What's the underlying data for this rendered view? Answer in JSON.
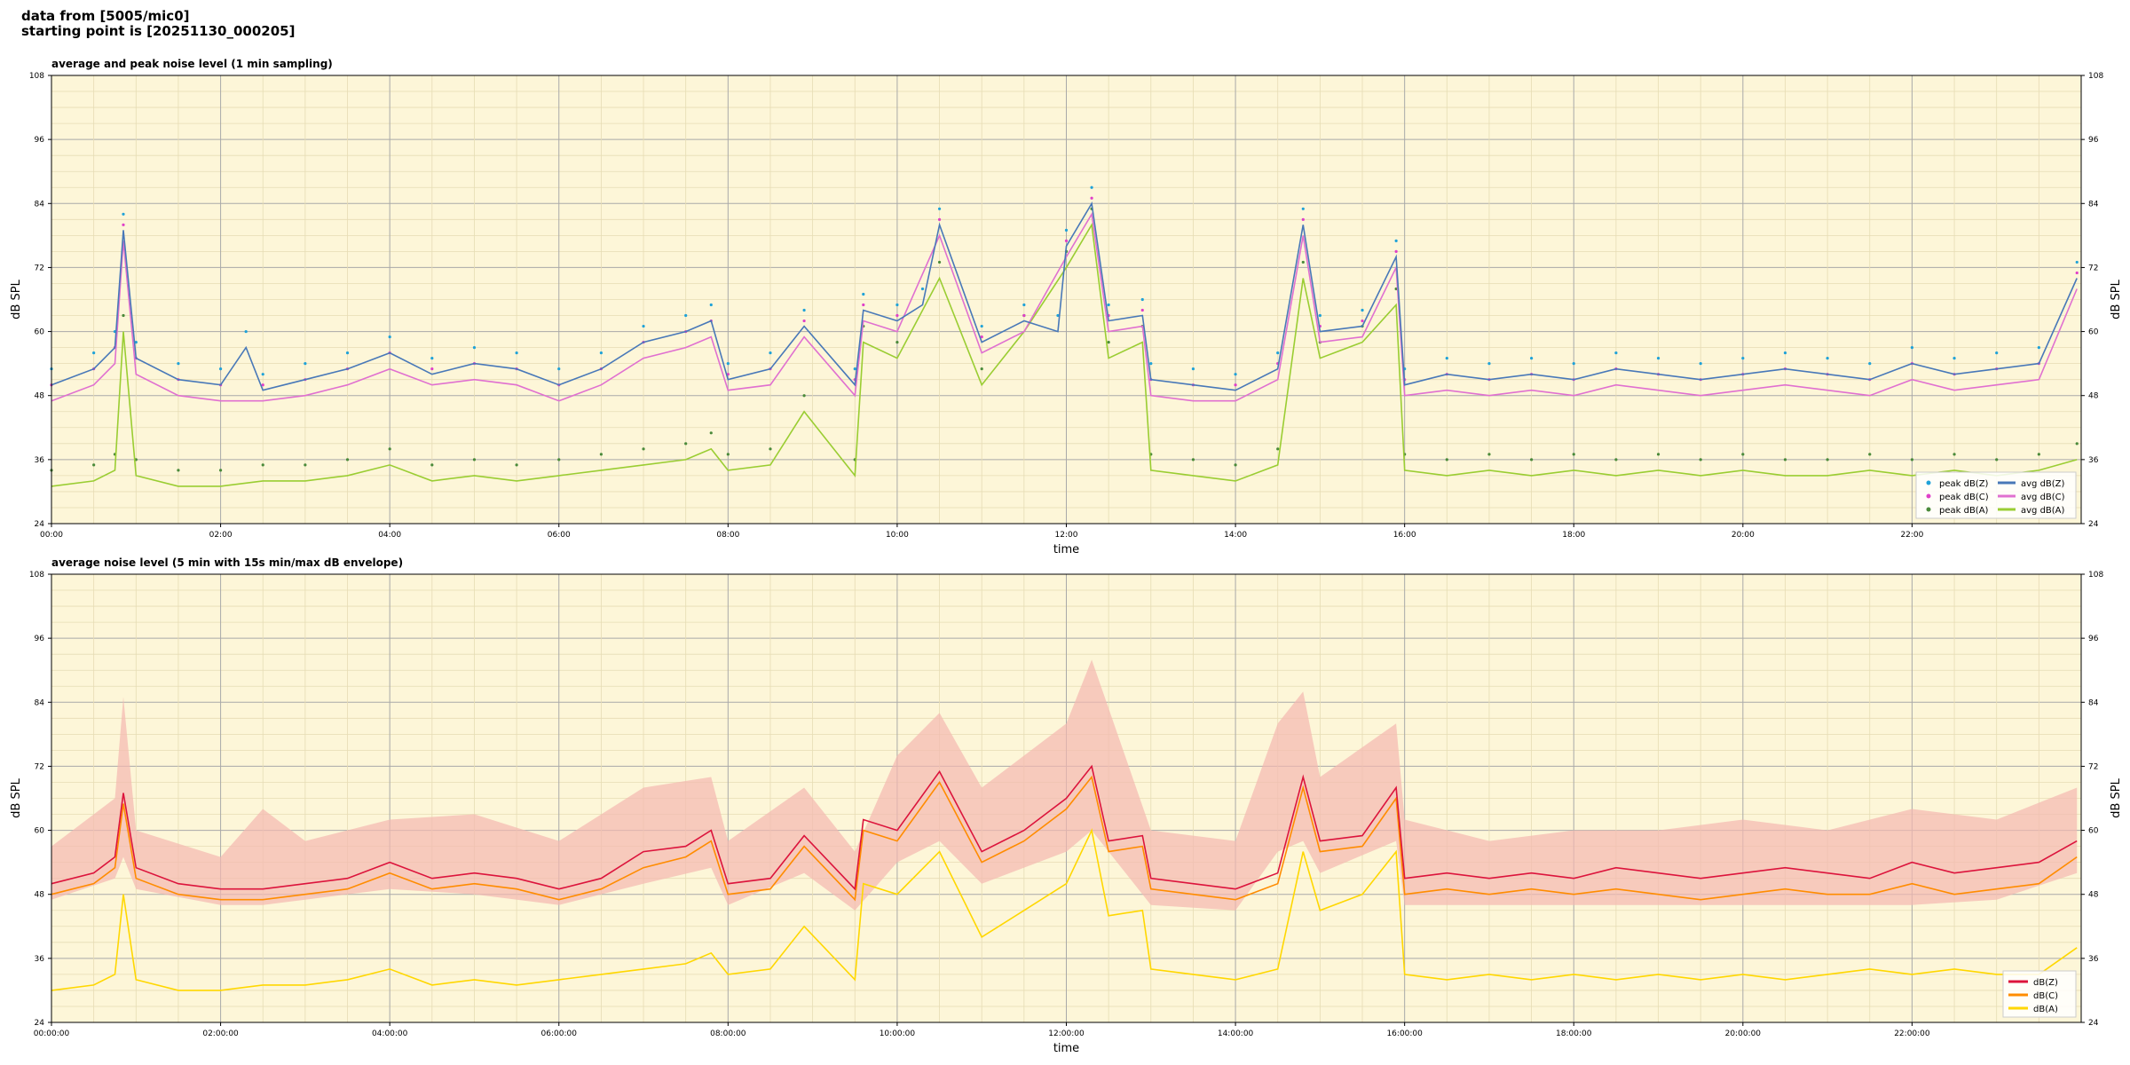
{
  "header": {
    "line1": "data from [5005/mic0]",
    "line2": "starting point is [20251130_000205]"
  },
  "colors": {
    "background": "#fdf6d8",
    "grid_major": "#a9a9a9",
    "grid_minor": "#e6dcb4",
    "peak_z": "#1fa2d8",
    "peak_c": "#e040c8",
    "peak_a": "#4a8a3a",
    "avg_z": "#4878b8",
    "avg_c": "#e070d0",
    "avg_a": "#9acd32",
    "line_z": "#dc143c",
    "line_c": "#ff8c00",
    "line_a": "#ffd700",
    "envelope": "#f4b8b0"
  },
  "chart_data": [
    {
      "type": "line",
      "title": "average and peak noise level (1 min sampling)",
      "xlabel": "time",
      "ylabel": "dB SPL",
      "xlim": [
        0,
        24
      ],
      "ylim": [
        24,
        108
      ],
      "yticks": [
        "24",
        "36",
        "48",
        "60",
        "72",
        "84",
        "96",
        "108"
      ],
      "xticks": [
        "00:00",
        "02:00",
        "04:00",
        "06:00",
        "08:00",
        "10:00",
        "12:00",
        "14:00",
        "16:00",
        "18:00",
        "20:00",
        "22:00"
      ],
      "grid": true,
      "legend": "bottom-right",
      "legend_entries": [
        "peak dB(Z)",
        "peak dB(C)",
        "peak dB(A)",
        "avg dB(Z)",
        "avg dB(C)",
        "avg dB(A)"
      ],
      "series": [
        {
          "name": "avg dB(Z)",
          "x": [
            0,
            0.5,
            0.75,
            0.85,
            1,
            1.5,
            2,
            2.3,
            2.5,
            3,
            3.5,
            4,
            4.5,
            5,
            5.5,
            6,
            6.5,
            7,
            7.5,
            7.8,
            8,
            8.5,
            8.9,
            9.5,
            9.6,
            10,
            10.3,
            10.5,
            11,
            11.5,
            11.9,
            12,
            12.3,
            12.5,
            12.9,
            13,
            13.5,
            14,
            14.5,
            14.8,
            15,
            15.5,
            15.9,
            16,
            16.5,
            17,
            17.5,
            18,
            18.5,
            19,
            19.5,
            20,
            20.5,
            21,
            21.5,
            22,
            22.5,
            23,
            23.5,
            23.95
          ],
          "values": [
            50,
            53,
            57,
            79,
            55,
            51,
            50,
            57,
            49,
            51,
            53,
            56,
            52,
            54,
            53,
            50,
            53,
            58,
            60,
            62,
            51,
            53,
            61,
            50,
            64,
            62,
            65,
            80,
            58,
            62,
            60,
            76,
            84,
            62,
            63,
            51,
            50,
            49,
            53,
            80,
            60,
            61,
            74,
            50,
            52,
            51,
            52,
            51,
            53,
            52,
            51,
            52,
            53,
            52,
            51,
            54,
            52,
            53,
            54,
            70
          ]
        },
        {
          "name": "avg dB(C)",
          "x": [
            0,
            0.5,
            0.75,
            0.85,
            1,
            1.5,
            2,
            2.5,
            3,
            3.5,
            4,
            4.5,
            5,
            5.5,
            6,
            6.5,
            7,
            7.5,
            7.8,
            8,
            8.5,
            8.9,
            9.5,
            9.6,
            10,
            10.5,
            11,
            11.5,
            12,
            12.3,
            12.5,
            12.9,
            13,
            13.5,
            14,
            14.5,
            14.8,
            15,
            15.5,
            15.9,
            16,
            16.5,
            17,
            17.5,
            18,
            18.5,
            19,
            19.5,
            20,
            20.5,
            21,
            21.5,
            22,
            22.5,
            23,
            23.5,
            23.95
          ],
          "values": [
            47,
            50,
            54,
            77,
            52,
            48,
            47,
            47,
            48,
            50,
            53,
            50,
            51,
            50,
            47,
            50,
            55,
            57,
            59,
            49,
            50,
            59,
            48,
            62,
            60,
            78,
            56,
            60,
            74,
            82,
            60,
            61,
            48,
            47,
            47,
            51,
            78,
            58,
            59,
            72,
            48,
            49,
            48,
            49,
            48,
            50,
            49,
            48,
            49,
            50,
            49,
            48,
            51,
            49,
            50,
            51,
            68
          ]
        },
        {
          "name": "avg dB(A)",
          "x": [
            0,
            0.5,
            0.75,
            0.85,
            1,
            1.5,
            2,
            2.5,
            3,
            3.5,
            4,
            4.5,
            5,
            5.5,
            6,
            6.5,
            7,
            7.5,
            7.8,
            8,
            8.5,
            8.9,
            9.5,
            9.6,
            10,
            10.5,
            11,
            11.5,
            12,
            12.3,
            12.5,
            12.9,
            13,
            13.5,
            14,
            14.5,
            14.8,
            15,
            15.5,
            15.9,
            16,
            16.5,
            17,
            17.5,
            18,
            18.5,
            19,
            19.5,
            20,
            20.5,
            21,
            21.5,
            22,
            22.5,
            23,
            23.5,
            23.95
          ],
          "values": [
            31,
            32,
            34,
            60,
            33,
            31,
            31,
            32,
            32,
            33,
            35,
            32,
            33,
            32,
            33,
            34,
            35,
            36,
            38,
            34,
            35,
            45,
            33,
            58,
            55,
            70,
            50,
            60,
            72,
            80,
            55,
            58,
            34,
            33,
            32,
            35,
            70,
            55,
            58,
            65,
            34,
            33,
            34,
            33,
            34,
            33,
            34,
            33,
            34,
            33,
            33,
            34,
            33,
            34,
            33,
            34,
            36
          ]
        }
      ]
    },
    {
      "type": "line",
      "title": "average noise level (5 min with 15s min/max dB envelope)",
      "xlabel": "time",
      "ylabel": "dB SPL",
      "xlim": [
        0,
        24
      ],
      "ylim": [
        24,
        108
      ],
      "yticks": [
        "24",
        "36",
        "48",
        "60",
        "72",
        "84",
        "96",
        "108"
      ],
      "xticks": [
        "00:00:00",
        "02:00:00",
        "04:00:00",
        "06:00:00",
        "08:00:00",
        "10:00:00",
        "12:00:00",
        "14:00:00",
        "16:00:00",
        "18:00:00",
        "20:00:00",
        "22:00:00"
      ],
      "grid": true,
      "legend": "bottom-right",
      "legend_entries": [
        "dB(Z)",
        "dB(C)",
        "dB(A)"
      ],
      "series": [
        {
          "name": "dB(Z)",
          "x": [
            0,
            0.5,
            0.75,
            0.85,
            1,
            1.5,
            2,
            2.5,
            3,
            3.5,
            4,
            4.5,
            5,
            5.5,
            6,
            6.5,
            7,
            7.5,
            7.8,
            8,
            8.5,
            8.9,
            9.5,
            9.6,
            10,
            10.5,
            11,
            11.5,
            12,
            12.3,
            12.5,
            12.9,
            13,
            13.5,
            14,
            14.5,
            14.8,
            15,
            15.5,
            15.9,
            16,
            16.5,
            17,
            17.5,
            18,
            18.5,
            19,
            19.5,
            20,
            20.5,
            21,
            21.5,
            22,
            22.5,
            23,
            23.5,
            23.95
          ],
          "values": [
            50,
            52,
            55,
            67,
            53,
            50,
            49,
            49,
            50,
            51,
            54,
            51,
            52,
            51,
            49,
            51,
            56,
            57,
            60,
            50,
            51,
            59,
            49,
            62,
            60,
            71,
            56,
            60,
            66,
            72,
            58,
            59,
            51,
            50,
            49,
            52,
            70,
            58,
            59,
            68,
            51,
            52,
            51,
            52,
            51,
            53,
            52,
            51,
            52,
            53,
            52,
            51,
            54,
            52,
            53,
            54,
            58
          ]
        },
        {
          "name": "dB(C)",
          "x": [
            0,
            0.5,
            0.75,
            0.85,
            1,
            1.5,
            2,
            2.5,
            3,
            3.5,
            4,
            4.5,
            5,
            5.5,
            6,
            6.5,
            7,
            7.5,
            7.8,
            8,
            8.5,
            8.9,
            9.5,
            9.6,
            10,
            10.5,
            11,
            11.5,
            12,
            12.3,
            12.5,
            12.9,
            13,
            13.5,
            14,
            14.5,
            14.8,
            15,
            15.5,
            15.9,
            16,
            16.5,
            17,
            17.5,
            18,
            18.5,
            19,
            19.5,
            20,
            20.5,
            21,
            21.5,
            22,
            22.5,
            23,
            23.5,
            23.95
          ],
          "values": [
            48,
            50,
            53,
            65,
            51,
            48,
            47,
            47,
            48,
            49,
            52,
            49,
            50,
            49,
            47,
            49,
            53,
            55,
            58,
            48,
            49,
            57,
            47,
            60,
            58,
            69,
            54,
            58,
            64,
            70,
            56,
            57,
            49,
            48,
            47,
            50,
            68,
            56,
            57,
            66,
            48,
            49,
            48,
            49,
            48,
            49,
            48,
            47,
            48,
            49,
            48,
            48,
            50,
            48,
            49,
            50,
            55
          ]
        },
        {
          "name": "dB(A)",
          "x": [
            0,
            0.5,
            0.75,
            0.85,
            1,
            1.5,
            2,
            2.5,
            3,
            3.5,
            4,
            4.5,
            5,
            5.5,
            6,
            6.5,
            7,
            7.5,
            7.8,
            8,
            8.5,
            8.9,
            9.5,
            9.6,
            10,
            10.5,
            11,
            11.5,
            12,
            12.3,
            12.5,
            12.9,
            13,
            13.5,
            14,
            14.5,
            14.8,
            15,
            15.5,
            15.9,
            16,
            16.5,
            17,
            17.5,
            18,
            18.5,
            19,
            19.5,
            20,
            20.5,
            21,
            21.5,
            22,
            22.5,
            23,
            23.5,
            23.95
          ],
          "values": [
            30,
            31,
            33,
            48,
            32,
            30,
            30,
            31,
            31,
            32,
            34,
            31,
            32,
            31,
            32,
            33,
            34,
            35,
            37,
            33,
            34,
            42,
            32,
            50,
            48,
            56,
            40,
            45,
            50,
            60,
            44,
            45,
            34,
            33,
            32,
            34,
            56,
            45,
            48,
            56,
            33,
            32,
            33,
            32,
            33,
            32,
            33,
            32,
            33,
            32,
            33,
            34,
            33,
            34,
            33,
            33,
            38
          ]
        },
        {
          "name": "envelope",
          "x": [
            0,
            0.75,
            0.85,
            1,
            2,
            2.5,
            3,
            4,
            5,
            6,
            7,
            7.8,
            8,
            8.9,
            9.5,
            10,
            10.5,
            11,
            12,
            12.3,
            13,
            14,
            14.5,
            14.8,
            15,
            15.9,
            16,
            17,
            18,
            19,
            20,
            21,
            22,
            23,
            23.95
          ],
          "min": [
            47,
            51,
            55,
            49,
            46,
            46,
            47,
            49,
            48,
            46,
            50,
            53,
            46,
            52,
            45,
            54,
            58,
            50,
            56,
            60,
            46,
            45,
            56,
            58,
            52,
            58,
            46,
            46,
            46,
            46,
            46,
            46,
            46,
            47,
            52
          ],
          "max": [
            57,
            66,
            85,
            60,
            55,
            64,
            58,
            62,
            63,
            58,
            68,
            70,
            58,
            68,
            56,
            74,
            82,
            68,
            80,
            92,
            60,
            58,
            80,
            86,
            70,
            80,
            62,
            58,
            60,
            60,
            62,
            60,
            64,
            62,
            68
          ]
        }
      ]
    }
  ]
}
